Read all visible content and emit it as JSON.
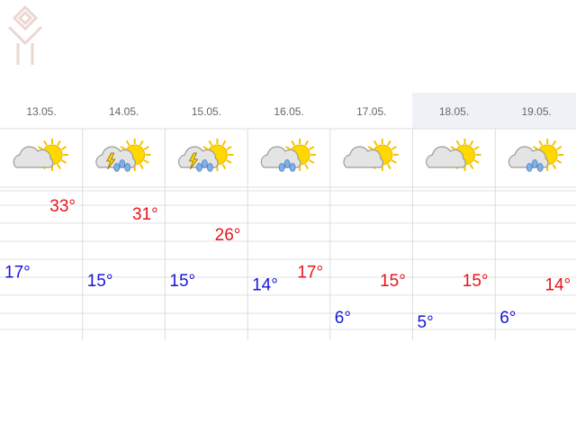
{
  "days": [
    {
      "date": "13.05.",
      "high": {
        "value": 33,
        "label": "33°"
      },
      "low": {
        "value": 17,
        "label": "17°"
      }
    },
    {
      "date": "14.05.",
      "high": {
        "value": 31,
        "label": "31°"
      },
      "low": {
        "value": 15,
        "label": "15°"
      }
    },
    {
      "date": "15.05.",
      "high": {
        "value": 26,
        "label": "26°"
      },
      "low": {
        "value": 15,
        "label": "15°"
      }
    },
    {
      "date": "16.05.",
      "high": {
        "value": 17,
        "label": "17°"
      },
      "low": {
        "value": 14,
        "label": "14°"
      }
    },
    {
      "date": "17.05.",
      "high": {
        "value": 15,
        "label": "15°"
      },
      "low": {
        "value": 6,
        "label": "6°"
      }
    },
    {
      "date": "18.05.",
      "high": {
        "value": 15,
        "label": "15°"
      },
      "low": {
        "value": 5,
        "label": "5°"
      }
    },
    {
      "date": "19.05.",
      "high": {
        "value": 14,
        "label": "14°"
      },
      "low": {
        "value": 6,
        "label": "6°"
      }
    }
  ]
}
